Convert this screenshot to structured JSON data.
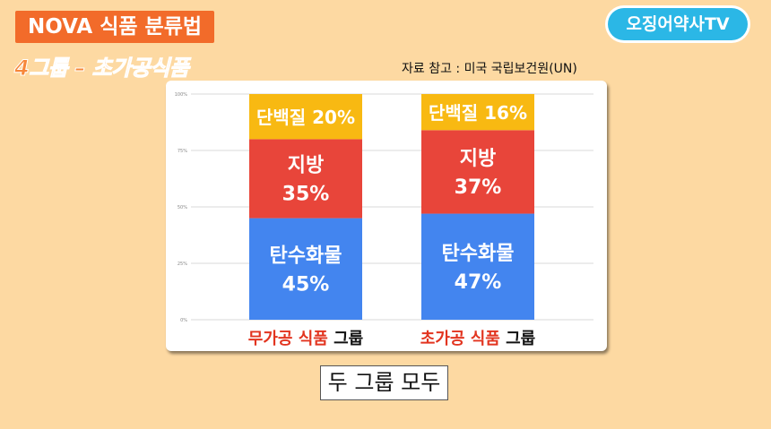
{
  "header": {
    "title": "NOVA 식품 분류법",
    "subtitle": "4그룹 – 초가공식품"
  },
  "source": "자료 참고 : 미국 국립보건원(UN)",
  "logo": {
    "text": "오징어약사TV"
  },
  "footer": {
    "caption": "두 그룹 모두"
  },
  "colors": {
    "protein": "#f8b912",
    "fat": "#e8453a",
    "carb": "#4385ef",
    "emphasis": "#e2341f"
  },
  "chart_data": {
    "type": "bar",
    "stacked": true,
    "categories": [
      {
        "highlight": "무가공 식품",
        "suffix": " 그룹"
      },
      {
        "highlight": "초가공 식품",
        "suffix": " 그룹"
      }
    ],
    "yticks": [
      "0%",
      "25%",
      "50%",
      "75%",
      "100%"
    ],
    "ylim": [
      0,
      100
    ],
    "grid": true,
    "series": [
      {
        "name": "탄수화물",
        "color": "#4385ef",
        "values": [
          45,
          47
        ],
        "labels": [
          [
            "탄수화물",
            "45%"
          ],
          [
            "탄수화물",
            "47%"
          ]
        ]
      },
      {
        "name": "지방",
        "color": "#e8453a",
        "values": [
          35,
          37
        ],
        "labels": [
          [
            "지방",
            "35%"
          ],
          [
            "지방",
            "37%"
          ]
        ]
      },
      {
        "name": "단백질",
        "color": "#f8b912",
        "values": [
          20,
          16
        ],
        "labels": [
          [
            "단백질 20%"
          ],
          [
            "단백질 16%"
          ]
        ]
      }
    ]
  }
}
